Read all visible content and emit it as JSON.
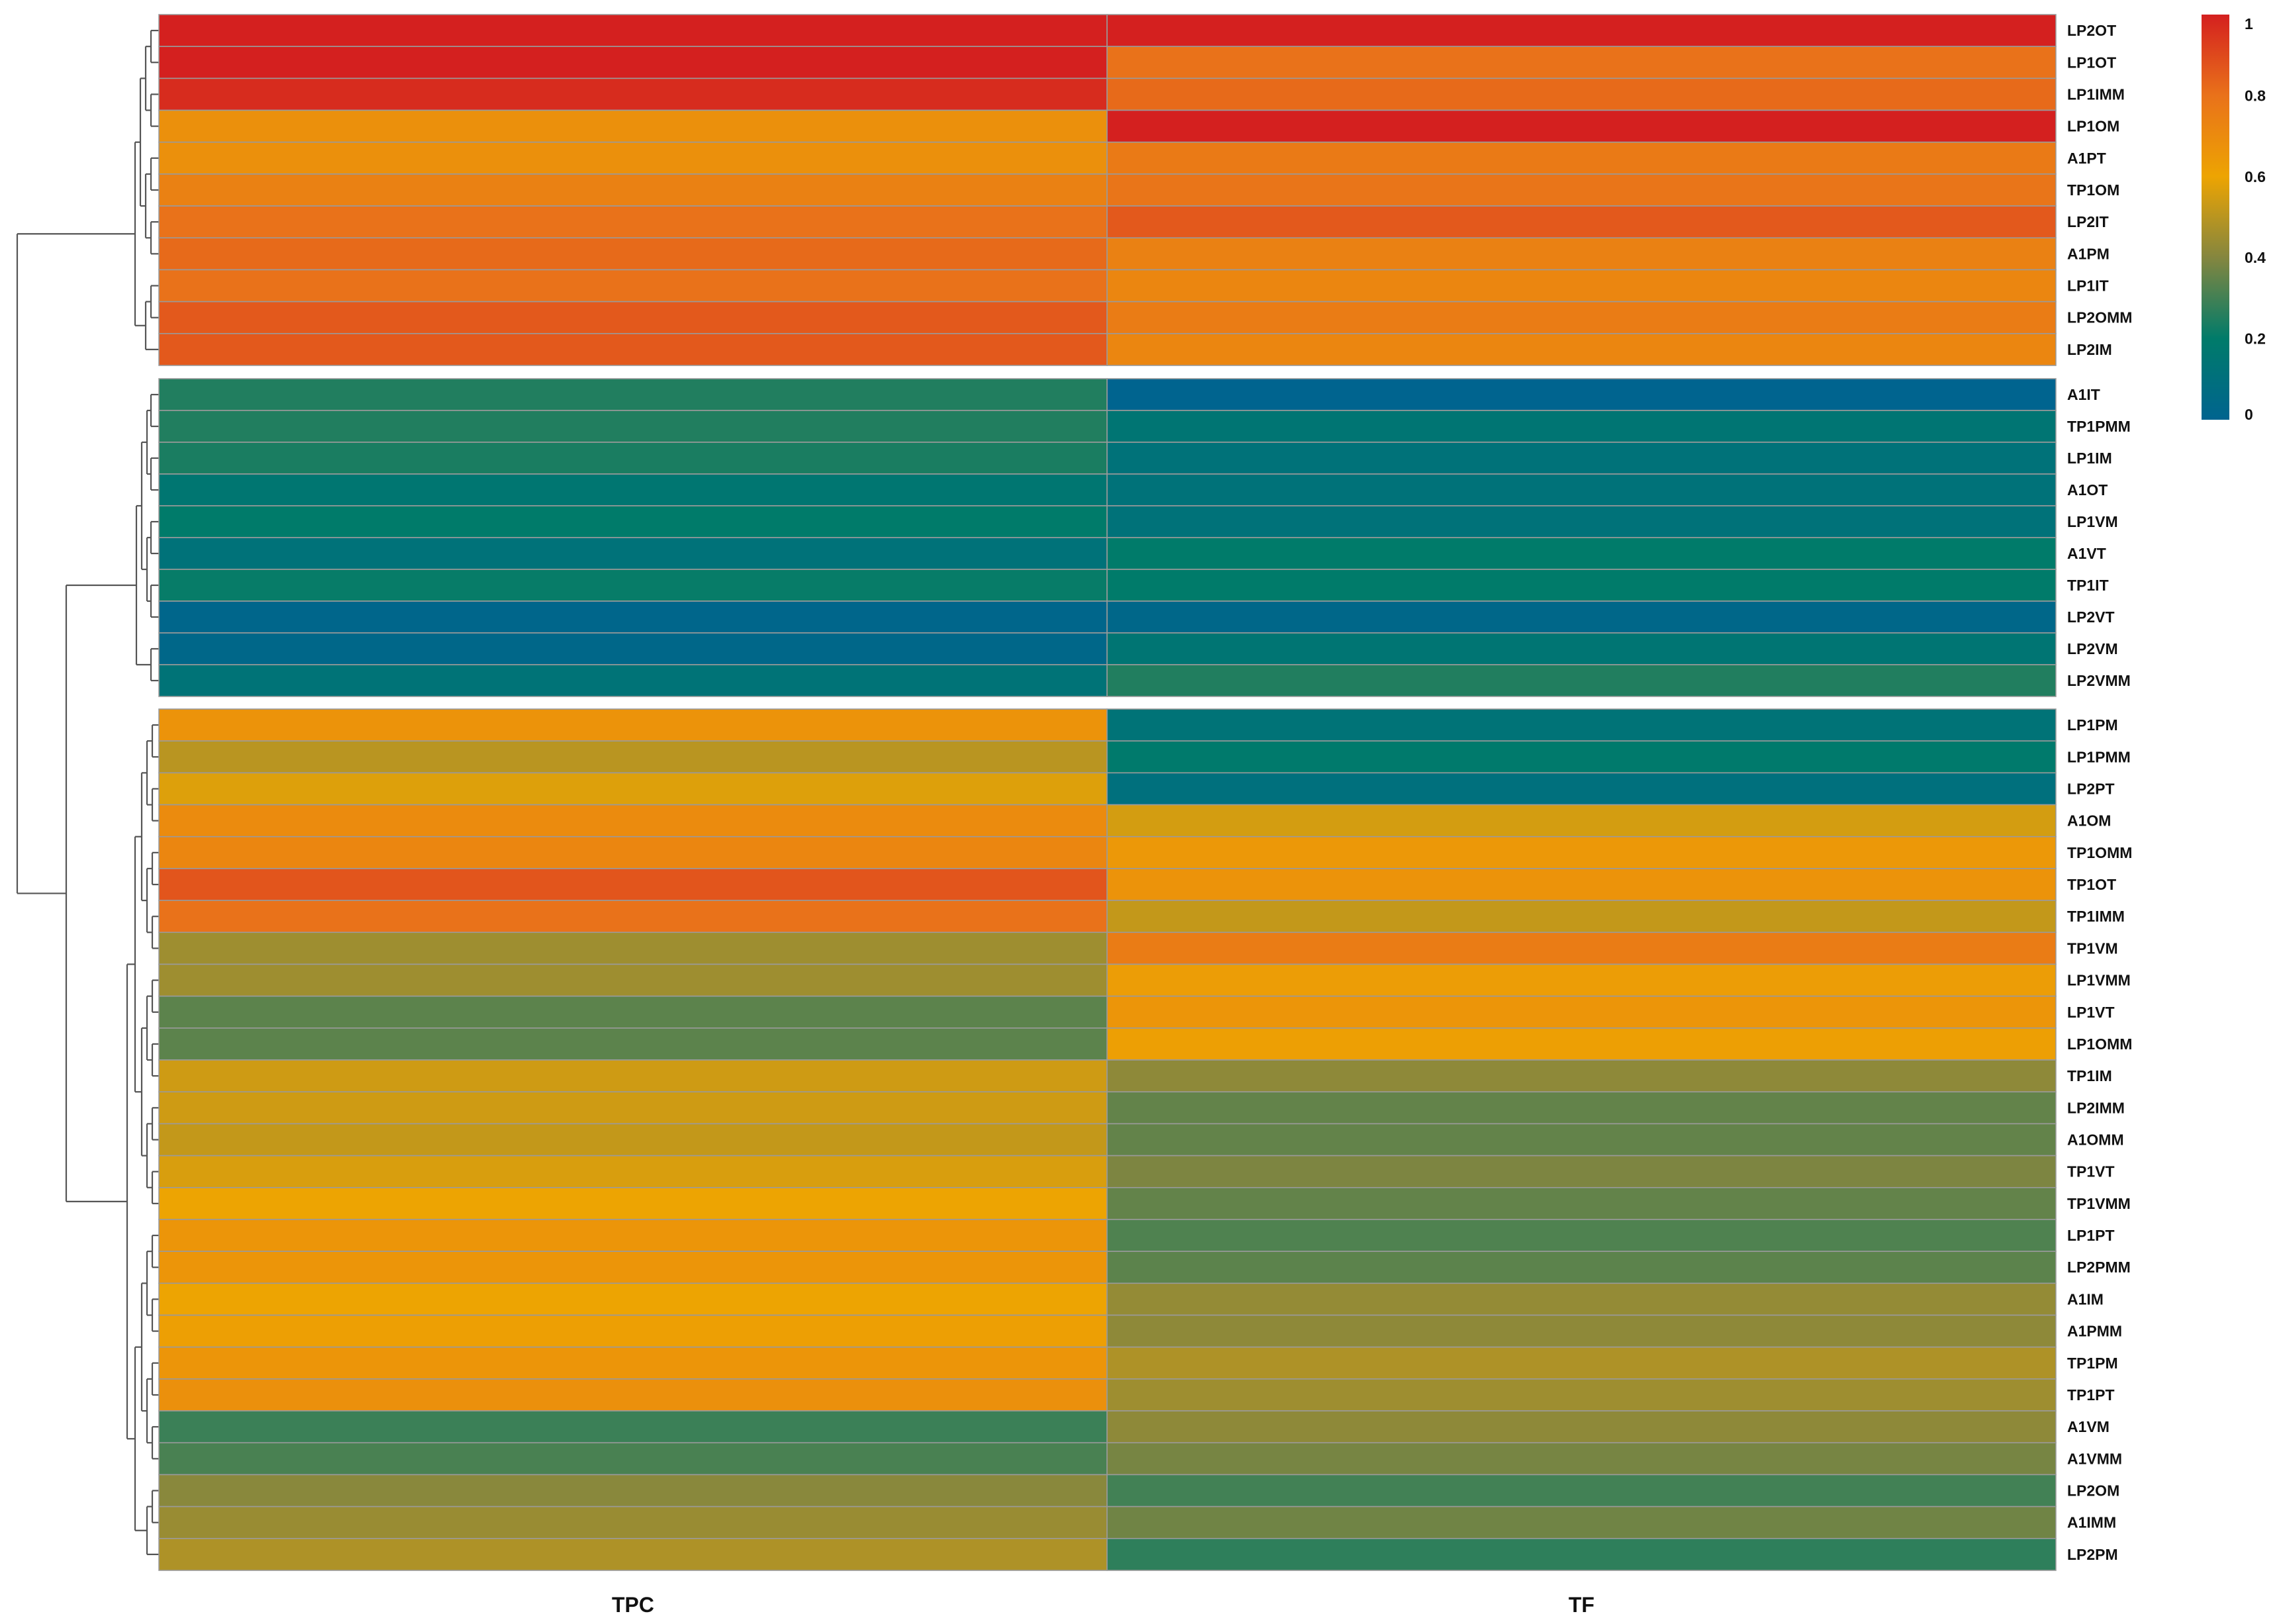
{
  "chart_data": {
    "type": "heatmap",
    "title": "",
    "columns": [
      "TPC",
      "TF"
    ],
    "rows": [
      {
        "label": "LP2OT",
        "values": [
          1.0,
          1.0
        ]
      },
      {
        "label": "LP1OT",
        "values": [
          1.0,
          0.8
        ]
      },
      {
        "label": "LP1IMM",
        "values": [
          0.97,
          0.82
        ]
      },
      {
        "label": "LP1OM",
        "values": [
          0.68,
          1.0
        ]
      },
      {
        "label": "A1PT",
        "values": [
          0.68,
          0.77
        ]
      },
      {
        "label": "TP1OM",
        "values": [
          0.74,
          0.79
        ]
      },
      {
        "label": "LP2IT",
        "values": [
          0.8,
          0.86
        ]
      },
      {
        "label": "A1PM",
        "values": [
          0.82,
          0.74
        ]
      },
      {
        "label": "LP1IT",
        "values": [
          0.8,
          0.72
        ]
      },
      {
        "label": "LP2OMM",
        "values": [
          0.86,
          0.76
        ]
      },
      {
        "label": "LP2IM",
        "values": [
          0.86,
          0.72
        ]
      },
      {
        "label": "A1IT",
        "values": [
          0.25,
          0.0
        ]
      },
      {
        "label": "TP1PMM",
        "values": [
          0.25,
          0.15
        ]
      },
      {
        "label": "LP1IM",
        "values": [
          0.24,
          0.12
        ]
      },
      {
        "label": "A1OT",
        "values": [
          0.16,
          0.12
        ]
      },
      {
        "label": "LP1VM",
        "values": [
          0.2,
          0.12
        ]
      },
      {
        "label": "A1VT",
        "values": [
          0.12,
          0.2
        ]
      },
      {
        "label": "TP1IT",
        "values": [
          0.21,
          0.2
        ]
      },
      {
        "label": "LP2VT",
        "values": [
          0.02,
          0.03
        ]
      },
      {
        "label": "LP2VM",
        "values": [
          0.03,
          0.15
        ]
      },
      {
        "label": "LP2VMM",
        "values": [
          0.13,
          0.25
        ]
      },
      {
        "label": "LP1PM",
        "values": [
          0.67,
          0.13
        ]
      },
      {
        "label": "LP1PMM",
        "values": [
          0.5,
          0.19
        ]
      },
      {
        "label": "LP2PT",
        "values": [
          0.57,
          0.1
        ]
      },
      {
        "label": "A1OM",
        "values": [
          0.7,
          0.55
        ]
      },
      {
        "label": "TP1OMM",
        "values": [
          0.72,
          0.65
        ]
      },
      {
        "label": "TP1OT",
        "values": [
          0.87,
          0.67
        ]
      },
      {
        "label": "TP1IMM",
        "values": [
          0.8,
          0.52
        ]
      },
      {
        "label": "TP1VM",
        "values": [
          0.45,
          0.76
        ]
      },
      {
        "label": "LP1VMM",
        "values": [
          0.45,
          0.63
        ]
      },
      {
        "label": "LP1VT",
        "values": [
          0.34,
          0.66
        ]
      },
      {
        "label": "LP1OMM",
        "values": [
          0.34,
          0.62
        ]
      },
      {
        "label": "TP1IM",
        "values": [
          0.54,
          0.42
        ]
      },
      {
        "label": "LP2IMM",
        "values": [
          0.54,
          0.35
        ]
      },
      {
        "label": "A1OMM",
        "values": [
          0.52,
          0.35
        ]
      },
      {
        "label": "TP1VT",
        "values": [
          0.56,
          0.39
        ]
      },
      {
        "label": "TP1VMM",
        "values": [
          0.6,
          0.35
        ]
      },
      {
        "label": "LP1PT",
        "values": [
          0.66,
          0.32
        ]
      },
      {
        "label": "LP2PMM",
        "values": [
          0.66,
          0.34
        ]
      },
      {
        "label": "A1IM",
        "values": [
          0.6,
          0.43
        ]
      },
      {
        "label": "A1PMM",
        "values": [
          0.62,
          0.42
        ]
      },
      {
        "label": "TP1PM",
        "values": [
          0.66,
          0.48
        ]
      },
      {
        "label": "TP1PT",
        "values": [
          0.68,
          0.45
        ]
      },
      {
        "label": "A1VM",
        "values": [
          0.29,
          0.42
        ]
      },
      {
        "label": "A1VMM",
        "values": [
          0.31,
          0.38
        ]
      },
      {
        "label": "LP2OM",
        "values": [
          0.41,
          0.3
        ]
      },
      {
        "label": "A1IMM",
        "values": [
          0.44,
          0.37
        ]
      },
      {
        "label": "LP2PM",
        "values": [
          0.48,
          0.27
        ]
      }
    ],
    "clusters": [
      {
        "first_row": 0,
        "last_row": 10
      },
      {
        "first_row": 11,
        "last_row": 20
      },
      {
        "first_row": 21,
        "last_row": 47
      }
    ],
    "colorbar": {
      "range": [
        0,
        1
      ],
      "ticks": [
        {
          "value": 1,
          "label": "1"
        },
        {
          "value": 0.8,
          "label": "0.8"
        },
        {
          "value": 0.6,
          "label": "0.6"
        },
        {
          "value": 0.4,
          "label": "0.4"
        },
        {
          "value": 0.2,
          "label": "0.2"
        },
        {
          "value": 0,
          "label": "0"
        }
      ],
      "color_stops": [
        {
          "value": 0.0,
          "color": "#00648f"
        },
        {
          "value": 0.2,
          "color": "#007b6a"
        },
        {
          "value": 0.4,
          "color": "#84863f"
        },
        {
          "value": 0.6,
          "color": "#eda402"
        },
        {
          "value": 0.8,
          "color": "#e9721a"
        },
        {
          "value": 1.0,
          "color": "#d4201f"
        }
      ]
    }
  }
}
